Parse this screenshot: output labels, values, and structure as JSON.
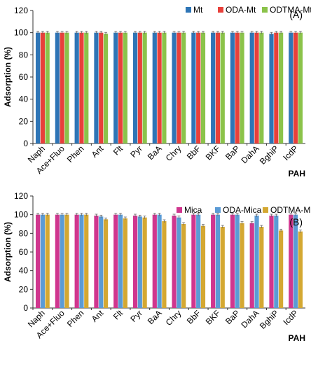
{
  "chart_data": [
    {
      "type": "bar",
      "panel_label": "(A)",
      "ylabel": "Adsorption (%)",
      "xlabel": "PAH",
      "ylim": [
        0,
        120
      ],
      "yticks": [
        0,
        20,
        40,
        60,
        80,
        100,
        120
      ],
      "grid": false,
      "legend_position": "top-right",
      "categories": [
        "Naph",
        "Ace+Fluo",
        "Phen",
        "Ant",
        "Flt",
        "Pyr",
        "BaA",
        "Chry",
        "BbF",
        "BKF",
        "BaP",
        "DahA",
        "BghiP",
        "IcdP"
      ],
      "series": [
        {
          "name": "Mt",
          "color": "#2e75b6",
          "values": [
            100,
            100,
            100,
            100,
            100,
            100,
            100,
            100,
            100,
            100,
            100,
            100,
            99,
            100
          ]
        },
        {
          "name": "ODA-Mt",
          "color": "#e8403a",
          "values": [
            100,
            100,
            100,
            100,
            100,
            100,
            100,
            100,
            100,
            100,
            100,
            100,
            100,
            100
          ]
        },
        {
          "name": "ODTMA-Mt",
          "color": "#8bc34a",
          "values": [
            100,
            100,
            100,
            99,
            100,
            100,
            100,
            100,
            100,
            100,
            100,
            100,
            100,
            100
          ]
        }
      ]
    },
    {
      "type": "bar",
      "panel_label": "(B)",
      "ylabel": "Adsorption (%)",
      "xlabel": "PAH",
      "ylim": [
        0,
        120
      ],
      "yticks": [
        0,
        20,
        40,
        60,
        80,
        100,
        120
      ],
      "grid": false,
      "legend_position": "top-right",
      "categories": [
        "Naph",
        "Ace+Fluo",
        "Phen",
        "Ant",
        "Flt",
        "Pyr",
        "BaA",
        "Chry",
        "BbF",
        "BKF",
        "BaP",
        "DahA",
        "BghiP",
        "IcdP"
      ],
      "series": [
        {
          "name": "Mica",
          "color": "#d0368e",
          "values": [
            100,
            100,
            100,
            99,
            100,
            99,
            100,
            99,
            100,
            100,
            100,
            91,
            99,
            100
          ]
        },
        {
          "name": "ODA-Mica",
          "color": "#5b9bd5",
          "values": [
            100,
            100,
            100,
            98,
            100,
            98,
            100,
            97,
            100,
            100,
            100,
            99,
            99,
            100
          ]
        },
        {
          "name": "ODTMA-Mica",
          "color": "#d4a832",
          "values": [
            100,
            100,
            100,
            95,
            96,
            97,
            93,
            90,
            88,
            87,
            91,
            87,
            83,
            82
          ]
        }
      ]
    }
  ]
}
